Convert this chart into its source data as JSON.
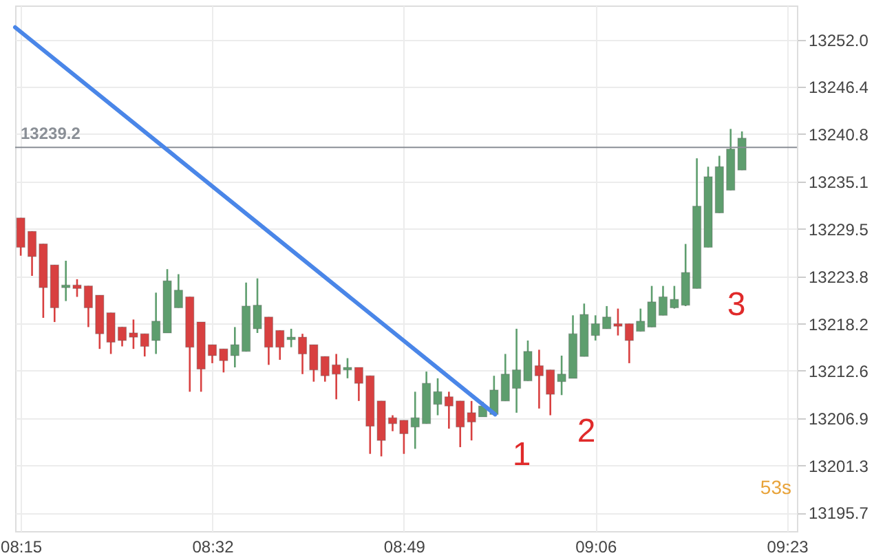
{
  "chart_data": {
    "type": "candlestick",
    "x": [
      8.25,
      8.2667,
      8.2833,
      8.3,
      8.3167,
      8.3333,
      8.35,
      8.3667,
      8.3833,
      8.4,
      8.4167,
      8.4333,
      8.45,
      8.4667,
      8.4833,
      8.5,
      8.5167,
      8.5333,
      8.55,
      8.5667,
      8.5833,
      8.6,
      8.6167,
      8.6333,
      8.65,
      8.6667,
      8.6833,
      8.7,
      8.7167,
      8.7333,
      8.75,
      8.7667,
      8.7833,
      8.8,
      8.8167,
      8.8333,
      8.85,
      8.8667,
      8.8833,
      8.9,
      8.9167,
      8.9333,
      8.95,
      8.9667,
      8.9833,
      9.0,
      9.0167,
      9.0333,
      9.05,
      9.0667,
      9.0833,
      9.1,
      9.1167,
      9.1333,
      9.15,
      9.1667,
      9.1833,
      9.2,
      9.2167,
      9.2333,
      9.25,
      9.2667,
      9.2833,
      9.3,
      9.3167
    ],
    "ohlc": [
      [
        13230.8,
        13230.8,
        13226.3,
        13227.3
      ],
      [
        13229.2,
        13229.2,
        13223.9,
        13226.2
      ],
      [
        13227.7,
        13227.7,
        13218.9,
        13222.5
      ],
      [
        13225.2,
        13225.2,
        13218.4,
        13220.1
      ],
      [
        13222.5,
        13225.7,
        13220.9,
        13222.8
      ],
      [
        13222.8,
        13223.5,
        13221.4,
        13222.4
      ],
      [
        13222.7,
        13222.7,
        13217.8,
        13220.1
      ],
      [
        13221.6,
        13221.6,
        13215.2,
        13217.0
      ],
      [
        13219.5,
        13219.5,
        13214.6,
        13216.0
      ],
      [
        13217.8,
        13217.8,
        13215.5,
        13216.2
      ],
      [
        13217.1,
        13218.7,
        13215.2,
        13216.6
      ],
      [
        13217.0,
        13217.0,
        13214.3,
        13215.5
      ],
      [
        13216.2,
        13221.9,
        13214.6,
        13218.5
      ],
      [
        13217.1,
        13224.7,
        13217.1,
        13223.3
      ],
      [
        13220.1,
        13224.1,
        13220.1,
        13222.2
      ],
      [
        13221.4,
        13221.4,
        13210.1,
        13215.4
      ],
      [
        13218.4,
        13218.4,
        13210.1,
        13212.8
      ],
      [
        13215.7,
        13215.7,
        13213.5,
        13214.4
      ],
      [
        13215.2,
        13215.2,
        13212.4,
        13213.8
      ],
      [
        13214.4,
        13217.8,
        13213.0,
        13215.7
      ],
      [
        13214.9,
        13223.1,
        13214.9,
        13220.3
      ],
      [
        13217.6,
        13223.6,
        13217.1,
        13220.4
      ],
      [
        13219.0,
        13219.0,
        13213.3,
        13215.4
      ],
      [
        13217.4,
        13217.4,
        13213.9,
        13215.4
      ],
      [
        13216.3,
        13217.6,
        13215.4,
        13216.6
      ],
      [
        13216.6,
        13217.0,
        13212.2,
        13214.6
      ],
      [
        13215.7,
        13215.7,
        13211.3,
        13212.7
      ],
      [
        13214.3,
        13214.3,
        13211.3,
        13212.0
      ],
      [
        13213.3,
        13214.6,
        13209.2,
        13212.2
      ],
      [
        13212.7,
        13214.1,
        13211.7,
        13213.0
      ],
      [
        13213.0,
        13213.0,
        13209.0,
        13211.1
      ],
      [
        13212.0,
        13212.0,
        13202.7,
        13206.0
      ],
      [
        13209.0,
        13209.0,
        13202.4,
        13204.3
      ],
      [
        13207.0,
        13207.3,
        13205.4,
        13206.3
      ],
      [
        13206.7,
        13206.7,
        13202.7,
        13205.1
      ],
      [
        13205.9,
        13210.1,
        13203.3,
        13207.0
      ],
      [
        13206.3,
        13212.5,
        13206.3,
        13211.1
      ],
      [
        13208.6,
        13211.7,
        13207.3,
        13210.1
      ],
      [
        13209.5,
        13210.1,
        13205.7,
        13208.4
      ],
      [
        13209.0,
        13209.0,
        13203.5,
        13205.9
      ],
      [
        13207.6,
        13209.0,
        13204.3,
        13206.5
      ],
      [
        13207.1,
        13208.9,
        13207.1,
        13208.4
      ],
      [
        13207.4,
        13212.0,
        13207.4,
        13210.3
      ],
      [
        13209.0,
        13214.6,
        13209.0,
        13212.2
      ],
      [
        13210.5,
        13217.6,
        13207.6,
        13212.7
      ],
      [
        13211.4,
        13216.2,
        13211.4,
        13214.9
      ],
      [
        13213.2,
        13215.1,
        13208.1,
        13212.0
      ],
      [
        13212.7,
        13212.7,
        13207.3,
        13209.8
      ],
      [
        13211.3,
        13214.4,
        13209.7,
        13212.2
      ],
      [
        13211.7,
        13219.2,
        13211.7,
        13217.0
      ],
      [
        13214.3,
        13220.6,
        13214.3,
        13219.3
      ],
      [
        13216.8,
        13219.2,
        13216.2,
        13218.2
      ],
      [
        13217.6,
        13220.3,
        13217.6,
        13219.0
      ],
      [
        13218.2,
        13220.0,
        13216.8,
        13217.9
      ],
      [
        13218.2,
        13218.2,
        13213.5,
        13216.2
      ],
      [
        13217.3,
        13220.0,
        13217.3,
        13218.5
      ],
      [
        13217.8,
        13222.7,
        13217.8,
        13220.8
      ],
      [
        13219.2,
        13222.7,
        13219.2,
        13221.4
      ],
      [
        13220.1,
        13222.7,
        13220.0,
        13221.1
      ],
      [
        13220.4,
        13227.7,
        13220.3,
        13224.3
      ],
      [
        13222.4,
        13237.9,
        13222.4,
        13232.2
      ],
      [
        13227.3,
        13236.9,
        13227.3,
        13235.7
      ],
      [
        13231.4,
        13238.2,
        13231.4,
        13236.9
      ],
      [
        13234.1,
        13241.4,
        13234.1,
        13239.0
      ],
      [
        13236.5,
        13241.1,
        13236.5,
        13240.3
      ]
    ],
    "colors": [
      "#d84040",
      "#d84040",
      "#d84040",
      "#d84040",
      "#5e9e6e",
      "#d84040",
      "#d84040",
      "#d84040",
      "#d84040",
      "#d84040",
      "#d84040",
      "#d84040",
      "#5e9e6e",
      "#5e9e6e",
      "#5e9e6e",
      "#d84040",
      "#d84040",
      "#d84040",
      "#d84040",
      "#5e9e6e",
      "#5e9e6e",
      "#5e9e6e",
      "#d84040",
      "#d84040",
      "#5e9e6e",
      "#d84040",
      "#d84040",
      "#d84040",
      "#d84040",
      "#5e9e6e",
      "#d84040",
      "#d84040",
      "#d84040",
      "#d84040",
      "#d84040",
      "#5e9e6e",
      "#5e9e6e",
      "#5e9e6e",
      "#d84040",
      "#d84040",
      "#d84040",
      "#5e9e6e",
      "#5e9e6e",
      "#5e9e6e",
      "#5e9e6e",
      "#5e9e6e",
      "#d84040",
      "#d84040",
      "#5e9e6e",
      "#5e9e6e",
      "#5e9e6e",
      "#5e9e6e",
      "#5e9e6e",
      "#d84040",
      "#d84040",
      "#5e9e6e",
      "#5e9e6e",
      "#5e9e6e",
      "#5e9e6e",
      "#5e9e6e",
      "#5e9e6e",
      "#5e9e6e",
      "#5e9e6e",
      "#5e9e6e",
      "#5e9e6e"
    ],
    "series": [
      {
        "type": "line",
        "color": "#4a86e8",
        "x": [
          8.2417,
          8.9517
        ],
        "values": [
          13253.5,
          13207.4
        ]
      }
    ],
    "xlim": [
      8.2417,
      9.398
    ],
    "xticks": [
      {
        "value": 8.25,
        "label": "08:15"
      },
      {
        "value": 8.5333,
        "label": "08:32"
      },
      {
        "value": 8.8167,
        "label": "08:49"
      },
      {
        "value": 9.1,
        "label": "09:06"
      },
      {
        "value": 9.3833,
        "label": "09:23"
      }
    ],
    "ylim": [
      13193.5,
      13256.1
    ],
    "yticks": [
      13195.7,
      13201.3,
      13206.9,
      13212.6,
      13218.2,
      13223.8,
      13229.5,
      13235.1,
      13240.8,
      13246.4,
      {
        "value": 13252,
        "label": "13252.0"
      }
    ],
    "grid": true,
    "ref_lines": [
      {
        "axis": "y",
        "value": 13239.2,
        "label": "13239.2",
        "color": "#8a8f96"
      }
    ],
    "annotations": [
      "1",
      "2",
      "3",
      "53s"
    ]
  }
}
